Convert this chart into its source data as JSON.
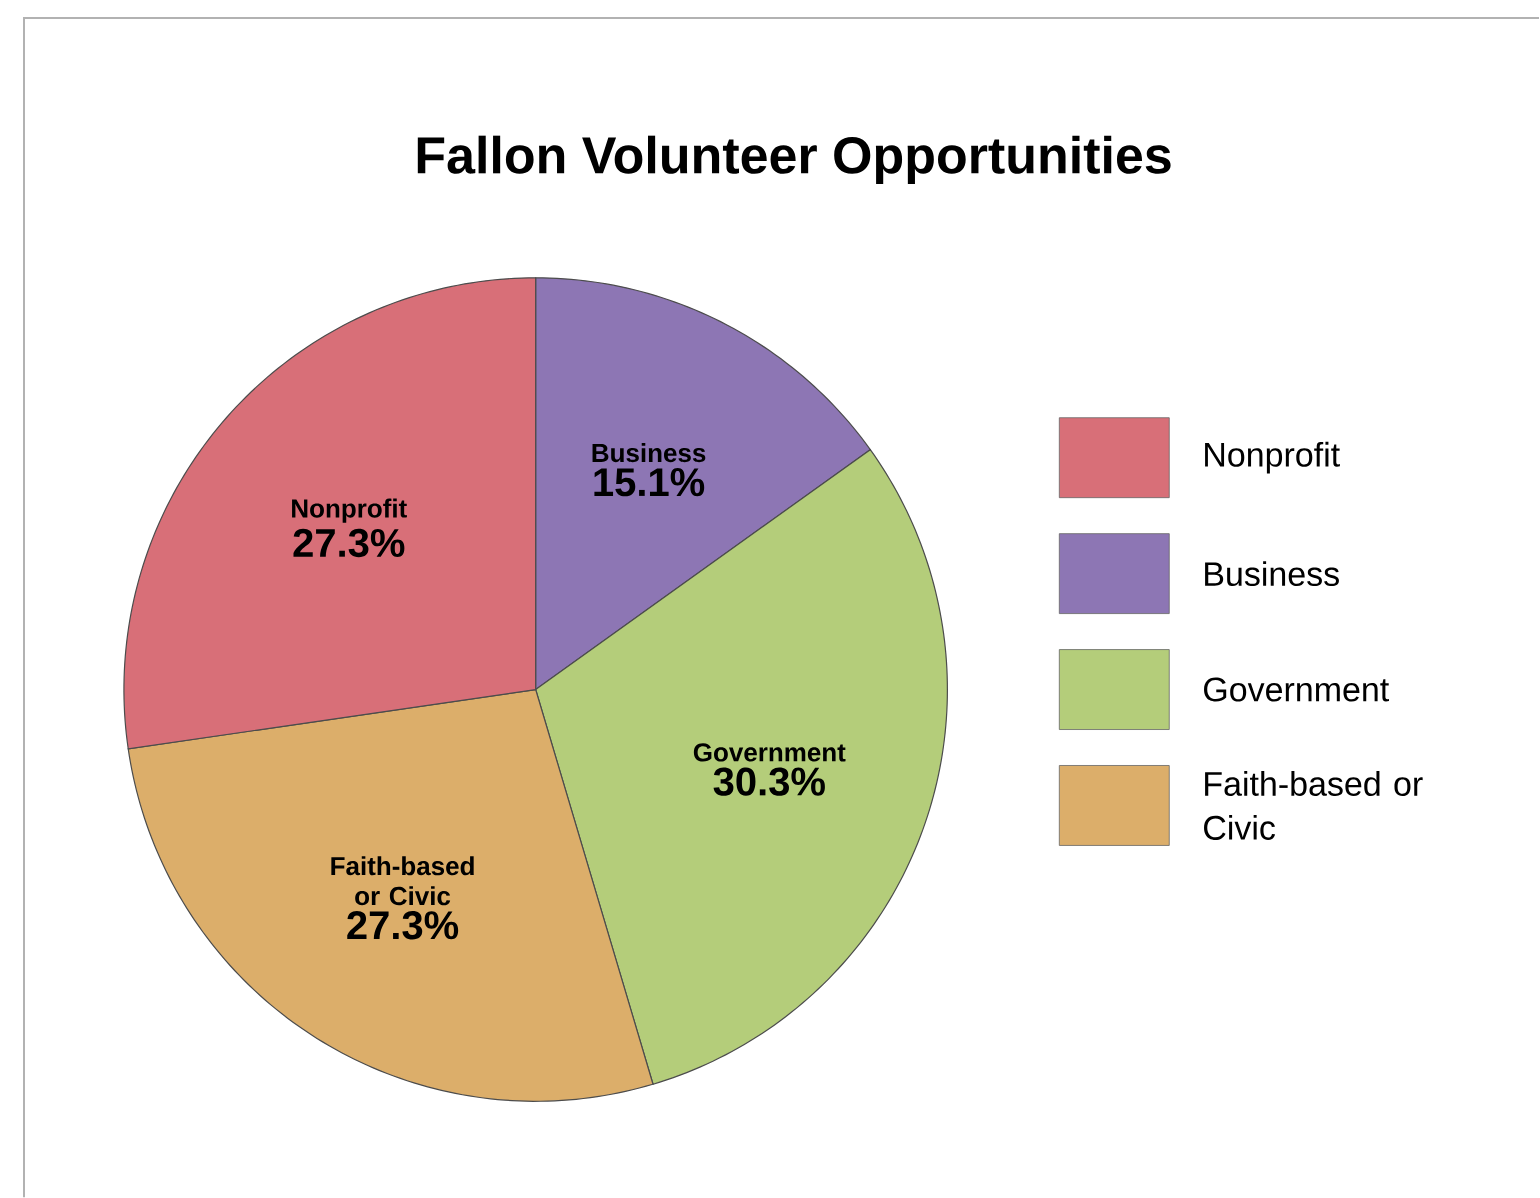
{
  "chart_data": {
    "type": "pie",
    "title": "Fallon Volunteer Opportunities",
    "categories": [
      "Business",
      "Government",
      "Faith-based or Civic",
      "Nonprofit"
    ],
    "values": [
      15.1,
      30.3,
      27.3,
      27.3
    ],
    "value_labels": [
      "15.1%",
      "30.3%",
      "27.3%",
      "27.3%"
    ],
    "colors": [
      "#8d76b4",
      "#b4cd7a",
      "#dcae6a",
      "#d86f78"
    ],
    "legend": "right"
  }
}
